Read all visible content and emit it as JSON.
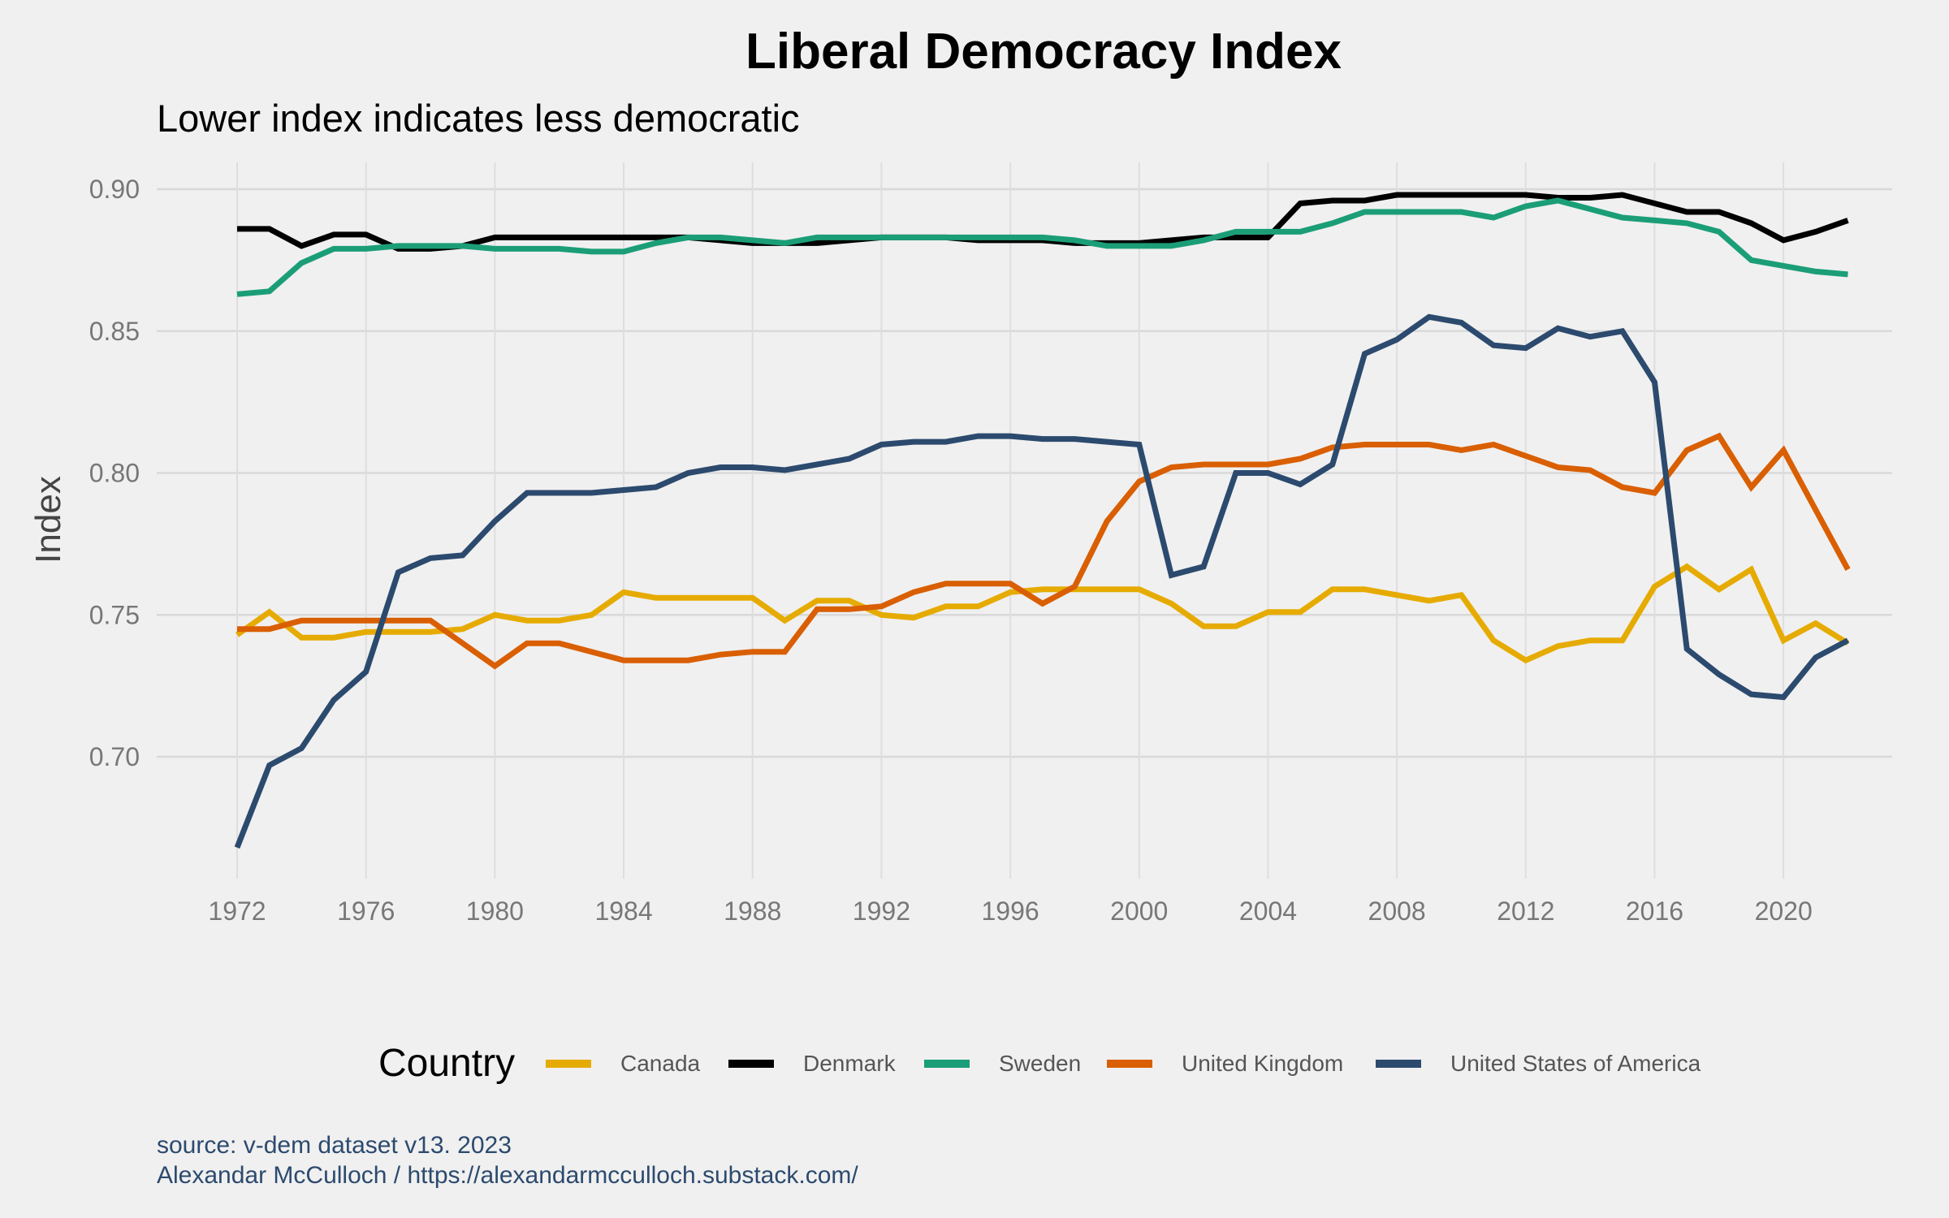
{
  "chart_data": {
    "type": "line",
    "title": "Liberal Democracy Index",
    "subtitle": "Lower index indicates less democratic",
    "xlabel": "",
    "ylabel": "Index",
    "xlim": [
      1972,
      2022
    ],
    "ylim": [
      0.668,
      0.9
    ],
    "grid": true,
    "legend_position": "bottom",
    "legend_title": "Country",
    "x_ticks": [
      1972,
      1976,
      1980,
      1984,
      1988,
      1992,
      1996,
      2000,
      2004,
      2008,
      2012,
      2016,
      2020
    ],
    "x_tick_labels": [
      "1972",
      "1976",
      "1980",
      "1984",
      "1988",
      "1992",
      "1996",
      "2000",
      "2004",
      "2008",
      "2012",
      "2016",
      "2020"
    ],
    "y_ticks": [
      0.7,
      0.75,
      0.8,
      0.85,
      0.9
    ],
    "y_tick_labels": [
      "0.70",
      "0.75",
      "0.80",
      "0.85",
      "0.90"
    ],
    "x": [
      1972,
      1973,
      1974,
      1975,
      1976,
      1977,
      1978,
      1979,
      1980,
      1981,
      1982,
      1983,
      1984,
      1985,
      1986,
      1987,
      1988,
      1989,
      1990,
      1991,
      1992,
      1993,
      1994,
      1995,
      1996,
      1997,
      1998,
      1999,
      2000,
      2001,
      2002,
      2003,
      2004,
      2005,
      2006,
      2007,
      2008,
      2009,
      2010,
      2011,
      2012,
      2013,
      2014,
      2015,
      2016,
      2017,
      2018,
      2019,
      2020,
      2021,
      2022
    ],
    "series": [
      {
        "name": "Canada",
        "color": "#E6AB02",
        "values": [
          0.743,
          0.751,
          0.742,
          0.742,
          0.744,
          0.744,
          0.744,
          0.745,
          0.75,
          0.748,
          0.748,
          0.75,
          0.758,
          0.756,
          0.756,
          0.756,
          0.756,
          0.748,
          0.755,
          0.755,
          0.75,
          0.749,
          0.753,
          0.753,
          0.758,
          0.759,
          0.759,
          0.759,
          0.759,
          0.754,
          0.746,
          0.746,
          0.751,
          0.751,
          0.759,
          0.759,
          0.757,
          0.755,
          0.757,
          0.741,
          0.734,
          0.739,
          0.741,
          0.741,
          0.76,
          0.767,
          0.759,
          0.766,
          0.741,
          0.747,
          0.74
        ]
      },
      {
        "name": "Denmark",
        "color": "#000000",
        "values": [
          0.886,
          0.886,
          0.88,
          0.884,
          0.884,
          0.879,
          0.879,
          0.88,
          0.883,
          0.883,
          0.883,
          0.883,
          0.883,
          0.883,
          0.883,
          0.882,
          0.881,
          0.881,
          0.881,
          0.882,
          0.883,
          0.883,
          0.883,
          0.882,
          0.882,
          0.882,
          0.881,
          0.881,
          0.881,
          0.882,
          0.883,
          0.883,
          0.883,
          0.895,
          0.896,
          0.896,
          0.898,
          0.898,
          0.898,
          0.898,
          0.898,
          0.897,
          0.897,
          0.898,
          0.895,
          0.892,
          0.892,
          0.888,
          0.882,
          0.885,
          0.889
        ]
      },
      {
        "name": "Sweden",
        "color": "#1B9E77",
        "values": [
          0.863,
          0.864,
          0.874,
          0.879,
          0.879,
          0.88,
          0.88,
          0.88,
          0.879,
          0.879,
          0.879,
          0.878,
          0.878,
          0.881,
          0.883,
          0.883,
          0.882,
          0.881,
          0.883,
          0.883,
          0.883,
          0.883,
          0.883,
          0.883,
          0.883,
          0.883,
          0.882,
          0.88,
          0.88,
          0.88,
          0.882,
          0.885,
          0.885,
          0.885,
          0.888,
          0.892,
          0.892,
          0.892,
          0.892,
          0.89,
          0.894,
          0.896,
          0.893,
          0.89,
          0.889,
          0.888,
          0.885,
          0.875,
          0.873,
          0.871,
          0.87
        ]
      },
      {
        "name": "United Kingdom",
        "color": "#D95F02",
        "values": [
          0.745,
          0.745,
          0.748,
          0.748,
          0.748,
          0.748,
          0.748,
          0.74,
          0.732,
          0.74,
          0.74,
          0.737,
          0.734,
          0.734,
          0.734,
          0.736,
          0.737,
          0.737,
          0.752,
          0.752,
          0.753,
          0.758,
          0.761,
          0.761,
          0.761,
          0.754,
          0.76,
          0.783,
          0.797,
          0.802,
          0.803,
          0.803,
          0.803,
          0.805,
          0.809,
          0.81,
          0.81,
          0.81,
          0.808,
          0.81,
          0.806,
          0.802,
          0.801,
          0.795,
          0.793,
          0.808,
          0.813,
          0.795,
          0.808,
          0.787,
          0.766
        ]
      },
      {
        "name": "United States of America",
        "color": "#2C4A6E",
        "values": [
          0.668,
          0.697,
          0.703,
          0.72,
          0.73,
          0.765,
          0.77,
          0.771,
          0.783,
          0.793,
          0.793,
          0.793,
          0.794,
          0.795,
          0.8,
          0.802,
          0.802,
          0.801,
          0.803,
          0.805,
          0.81,
          0.811,
          0.811,
          0.813,
          0.813,
          0.812,
          0.812,
          0.811,
          0.81,
          0.764,
          0.767,
          0.8,
          0.8,
          0.796,
          0.803,
          0.842,
          0.847,
          0.855,
          0.853,
          0.845,
          0.844,
          0.851,
          0.848,
          0.85,
          0.832,
          0.738,
          0.729,
          0.722,
          0.721,
          0.735,
          0.741
        ]
      }
    ]
  },
  "caption": {
    "line1": "source: v-dem dataset v13. 2023",
    "line2": "Alexandar McCulloch / https://alexandarmcculloch.substack.com/"
  }
}
